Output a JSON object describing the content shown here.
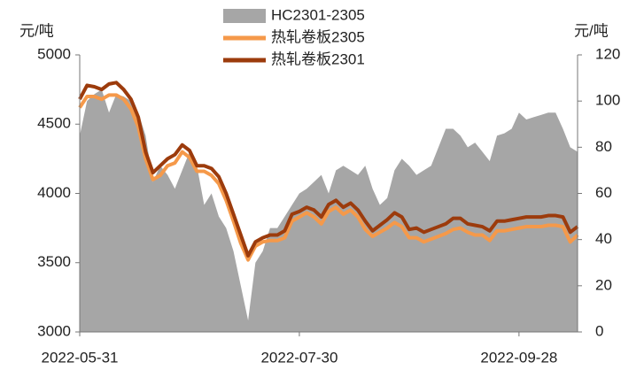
{
  "chart_data": {
    "type": "line",
    "y_label": "元/吨",
    "y2_label": "元/吨",
    "categories": [
      "2022-05-31",
      null,
      null,
      null,
      null,
      null,
      null,
      null,
      null,
      null,
      null,
      null,
      null,
      null,
      null,
      null,
      null,
      null,
      null,
      null,
      null,
      null,
      null,
      null,
      null,
      null,
      null,
      null,
      null,
      null,
      "2022-07-30",
      null,
      null,
      null,
      null,
      null,
      null,
      null,
      null,
      null,
      null,
      null,
      null,
      null,
      null,
      null,
      null,
      null,
      null,
      null,
      null,
      null,
      null,
      null,
      null,
      null,
      null,
      null,
      null,
      null,
      "2022-09-28",
      null,
      null,
      null,
      null,
      null,
      null,
      null,
      null
    ],
    "ylim": [
      3000,
      5000
    ],
    "yticks": [
      3000,
      3500,
      4000,
      4500,
      5000
    ],
    "y2lim": [
      0,
      120
    ],
    "y2ticks": [
      0,
      20,
      40,
      60,
      80,
      100,
      120
    ],
    "series": [
      {
        "name": "HC2301-2305",
        "color": "#a6a6a6",
        "kind": "area",
        "axis": "y2",
        "values": [
          85,
          100,
          103,
          105,
          95,
          103,
          102,
          100,
          95,
          85,
          65,
          72,
          68,
          62,
          70,
          78,
          72,
          55,
          60,
          50,
          45,
          35,
          20,
          5,
          30,
          35,
          45,
          45,
          50,
          55,
          60,
          62,
          65,
          68,
          60,
          70,
          72,
          70,
          68,
          72,
          62,
          55,
          58,
          70,
          75,
          72,
          68,
          70,
          72,
          80,
          88,
          88,
          85,
          80,
          82,
          78,
          74,
          85,
          86,
          88,
          95,
          92,
          93,
          94,
          95,
          95,
          88,
          80,
          78
        ]
      },
      {
        "name": "热轧卷板2305",
        "color": "#f5994a",
        "kind": "line",
        "values": [
          4620,
          4700,
          4700,
          4680,
          4710,
          4710,
          4680,
          4610,
          4480,
          4250,
          4100,
          4130,
          4200,
          4220,
          4300,
          4260,
          4160,
          4160,
          4130,
          4070,
          3950,
          3800,
          3640,
          3520,
          3620,
          3650,
          3660,
          3660,
          3680,
          3800,
          3830,
          3860,
          3830,
          3780,
          3870,
          3900,
          3850,
          3880,
          3830,
          3740,
          3690,
          3720,
          3750,
          3790,
          3760,
          3680,
          3680,
          3650,
          3670,
          3690,
          3710,
          3740,
          3750,
          3720,
          3700,
          3700,
          3660,
          3730,
          3730,
          3740,
          3750,
          3760,
          3760,
          3760,
          3770,
          3770,
          3760,
          3650,
          3700
        ]
      },
      {
        "name": "热轧卷板2301",
        "color": "#9c3b0c",
        "kind": "line",
        "values": [
          4680,
          4780,
          4770,
          4750,
          4790,
          4800,
          4750,
          4680,
          4550,
          4300,
          4150,
          4200,
          4250,
          4280,
          4350,
          4310,
          4200,
          4200,
          4180,
          4120,
          4000,
          3850,
          3700,
          3550,
          3650,
          3680,
          3700,
          3700,
          3730,
          3850,
          3870,
          3900,
          3880,
          3830,
          3920,
          3950,
          3900,
          3930,
          3880,
          3800,
          3730,
          3770,
          3810,
          3860,
          3830,
          3740,
          3750,
          3720,
          3740,
          3760,
          3780,
          3820,
          3820,
          3780,
          3770,
          3760,
          3730,
          3800,
          3800,
          3810,
          3820,
          3830,
          3830,
          3830,
          3840,
          3840,
          3830,
          3720,
          3760
        ]
      }
    ]
  }
}
